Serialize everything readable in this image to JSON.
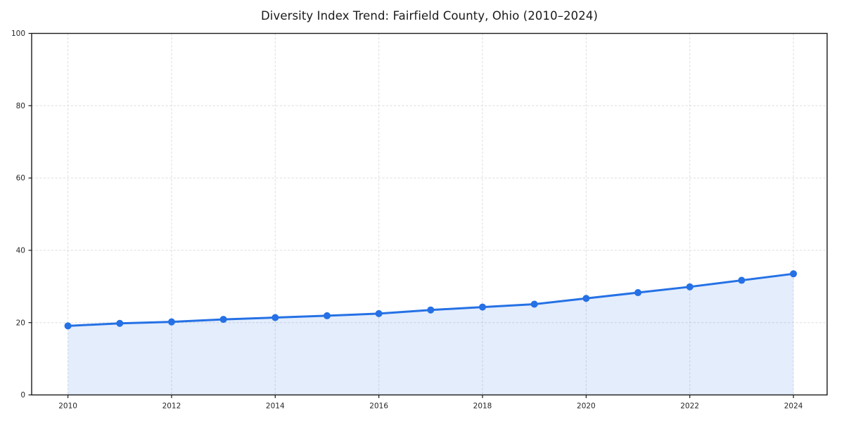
{
  "chart_data": {
    "type": "line",
    "title": "Diversity Index Trend: Fairfield County, Ohio (2010–2024)",
    "x": [
      2010,
      2011,
      2012,
      2013,
      2014,
      2015,
      2016,
      2017,
      2018,
      2019,
      2020,
      2021,
      2022,
      2023,
      2024
    ],
    "series": [
      {
        "name": "Diversity Index",
        "values": [
          19.1,
          19.8,
          20.2,
          20.9,
          21.4,
          21.9,
          22.5,
          23.5,
          24.3,
          25.1,
          26.7,
          28.3,
          29.9,
          31.7,
          33.5
        ]
      }
    ],
    "xlabel": "",
    "ylabel": "",
    "xlim": [
      2009.3,
      2024.65
    ],
    "ylim": [
      0,
      100
    ],
    "xticks": [
      2010,
      2012,
      2014,
      2016,
      2018,
      2020,
      2022,
      2024
    ],
    "yticks": [
      0,
      20,
      40,
      60,
      80,
      100
    ],
    "grid": true,
    "grid_style": "dashed",
    "legend_position": "none",
    "marker": "circle",
    "area_fill": true,
    "colors": {
      "line": "#2571e5",
      "marker": "#2571e5",
      "area_fill": "rgba(37,113,229,0.13)",
      "grid": "#dddddd",
      "spine": "#1a1a1a",
      "tick_text": "#262626",
      "background": "#ffffff"
    }
  }
}
